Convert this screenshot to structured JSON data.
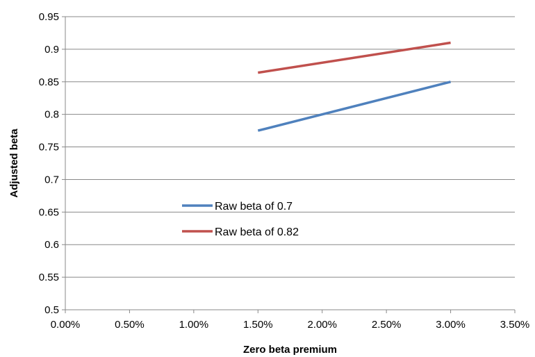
{
  "chart_data": {
    "type": "line",
    "title": "",
    "xlabel": "Zero beta premium",
    "ylabel": "Adjusted beta",
    "xlim": [
      0.0,
      0.035
    ],
    "ylim": [
      0.5,
      0.95
    ],
    "x_ticks": [
      0.0,
      0.005,
      0.01,
      0.015,
      0.02,
      0.025,
      0.03,
      0.035
    ],
    "x_tick_labels": [
      "0.00%",
      "0.50%",
      "1.00%",
      "1.50%",
      "2.00%",
      "2.50%",
      "3.00%",
      "3.50%"
    ],
    "y_ticks": [
      0.5,
      0.55,
      0.6,
      0.65,
      0.7,
      0.75,
      0.8,
      0.85,
      0.9,
      0.95
    ],
    "y_tick_labels": [
      "0.5",
      "0.55",
      "0.6",
      "0.65",
      "0.7",
      "0.75",
      "0.8",
      "0.85",
      "0.9",
      "0.95"
    ],
    "grid": "horizontal",
    "legend_position": "inside-center-left",
    "series": [
      {
        "name": "Raw beta of 0.7",
        "color": "#4F81BD",
        "x": [
          0.015,
          0.03
        ],
        "y": [
          0.775,
          0.85
        ]
      },
      {
        "name": "Raw beta of 0.82",
        "color": "#C0504D",
        "x": [
          0.015,
          0.03
        ],
        "y": [
          0.864,
          0.91
        ]
      }
    ]
  }
}
